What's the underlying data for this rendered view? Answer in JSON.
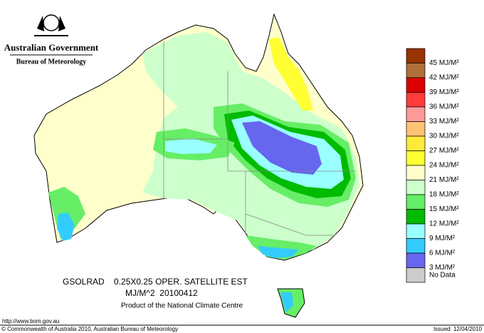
{
  "header": {
    "government": "Australian Government",
    "agency": "Bureau of Meteorology"
  },
  "legend": [
    {
      "label": "45 MJ/M²",
      "color": "#993300"
    },
    {
      "label": "42 MJ/M²",
      "color": "#b0703a"
    },
    {
      "label": "39 MJ/M²",
      "color": "#dd0000"
    },
    {
      "label": "36 MJ/M²",
      "color": "#ff3b3b"
    },
    {
      "label": "33 MJ/M²",
      "color": "#ff9a9a"
    },
    {
      "label": "30 MJ/M²",
      "color": "#ffc275"
    },
    {
      "label": "27 MJ/M²",
      "color": "#ffea3a"
    },
    {
      "label": "24 MJ/M²",
      "color": "#ffff33"
    },
    {
      "label": "21 MJ/M²",
      "color": "#ffffcc"
    },
    {
      "label": "18 MJ/M²",
      "color": "#ccffcc"
    },
    {
      "label": "15 MJ/M²",
      "color": "#66ee66"
    },
    {
      "label": "12 MJ/M²",
      "color": "#00bb00"
    },
    {
      "label": "9 MJ/M²",
      "color": "#99ffff"
    },
    {
      "label": "6 MJ/M²",
      "color": "#33ccff"
    },
    {
      "label": "3 MJ/M²",
      "color": "#6666ee"
    },
    {
      "label": "No Data",
      "color": "#cccccc"
    }
  ],
  "map": {
    "product": "GSOLRAD    0.25X0.25 OPER. SATELLITE EST",
    "units_date": "MJ/M^2  20100412",
    "centre": "Product of the National Climate Centre"
  },
  "footer": {
    "url": "http://www.bom.gov.au",
    "copyright": "© Commonwealth of Australia 2010, Australian Bureau of Meteorology",
    "issued": "Issued: 12/04/2010"
  }
}
